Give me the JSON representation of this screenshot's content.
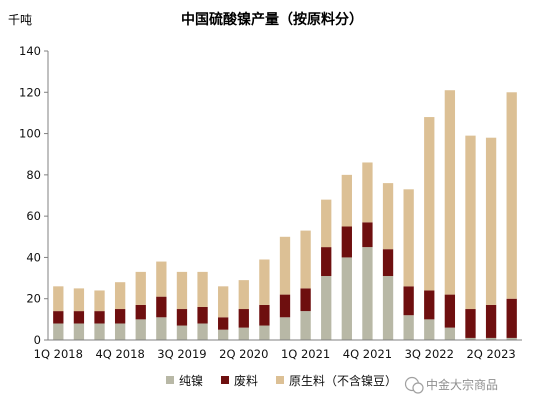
{
  "chart_data": {
    "type": "bar",
    "stacked": true,
    "title": "中国硫酸镍产量（按原料分）",
    "unit_label": "千吨",
    "ylim": [
      0,
      140
    ],
    "yticks": [
      0,
      20,
      40,
      60,
      80,
      100,
      120,
      140
    ],
    "grid": false,
    "legend_position": "bottom",
    "categories": [
      "1Q 2018",
      "2Q 2018",
      "3Q 2018",
      "4Q 2018",
      "1Q 2019",
      "2Q 2019",
      "3Q 2019",
      "4Q 2019",
      "1Q 2020",
      "2Q 2020",
      "3Q 2020",
      "4Q 2020",
      "1Q 2021",
      "2Q 2021",
      "3Q 2021",
      "4Q 2021",
      "1Q 2022",
      "2Q 2022",
      "3Q 2022",
      "4Q 2022",
      "1Q 2023",
      "2Q 2023",
      "3Q 2023"
    ],
    "xtick_labels": [
      "1Q 2018",
      "4Q 2018",
      "3Q 2019",
      "2Q 2020",
      "1Q 2021",
      "4Q 2021",
      "3Q 2022",
      "2Q 2023"
    ],
    "series": [
      {
        "name": "纯镍",
        "color": "#b8b8a6",
        "values": [
          8,
          8,
          8,
          8,
          10,
          11,
          7,
          8,
          5,
          6,
          7,
          11,
          14,
          31,
          40,
          45,
          31,
          12,
          10,
          6,
          1,
          1,
          1
        ]
      },
      {
        "name": "废料",
        "color": "#6e0f0f",
        "values": [
          6,
          6,
          6,
          7,
          7,
          10,
          8,
          8,
          6,
          9,
          10,
          11,
          11,
          14,
          15,
          12,
          13,
          14,
          14,
          16,
          14,
          16,
          19
        ]
      },
      {
        "name": "原生料（不含镍豆）",
        "color": "#dcc095",
        "values": [
          12,
          11,
          10,
          13,
          16,
          17,
          18,
          17,
          15,
          14,
          22,
          28,
          28,
          23,
          25,
          29,
          32,
          47,
          84,
          99,
          84,
          81,
          100
        ]
      }
    ]
  },
  "watermark": {
    "text": "中金大宗商品"
  }
}
